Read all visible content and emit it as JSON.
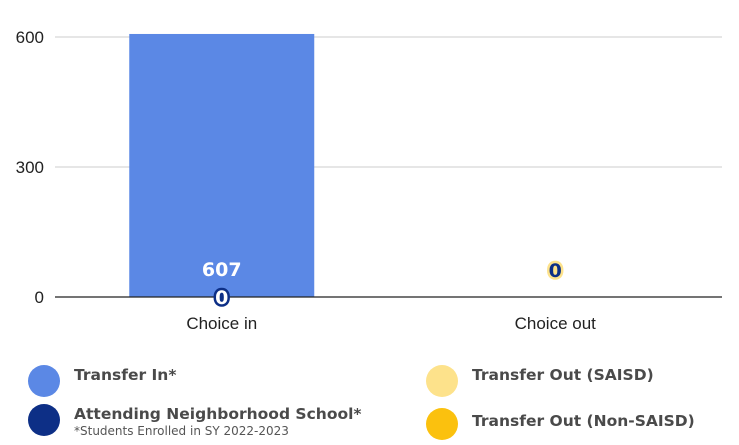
{
  "chart_data": {
    "type": "bar",
    "categories": [
      "Choice in",
      "Choice out"
    ],
    "series": [
      {
        "name": "Transfer In*",
        "values": [
          607,
          0
        ],
        "color": "#5b88e5"
      },
      {
        "name": "Attending Neighborhood School*",
        "values": [
          0,
          null
        ],
        "color": "#0d2f86"
      },
      {
        "name": "Transfer Out (SAISD)",
        "values": [
          null,
          0
        ],
        "color": "#fde28b"
      },
      {
        "name": "Transfer Out (Non-SAISD)",
        "values": [
          null,
          null
        ],
        "color": "#fbc10e"
      }
    ],
    "bar_labels": [
      {
        "category": "Choice in",
        "text": "607",
        "series": "Transfer In*"
      },
      {
        "category": "Choice in",
        "text": "0",
        "series": "Attending Neighborhood School*"
      },
      {
        "category": "Choice out",
        "text": "0",
        "series": "Transfer Out (SAISD)"
      }
    ],
    "yticks": [
      0,
      300,
      600
    ],
    "ylim": [
      0,
      610
    ],
    "grid": true,
    "legend_position": "bottom",
    "xlabel": "",
    "ylabel": ""
  },
  "legend": {
    "items": [
      {
        "label": "Transfer In*",
        "color": "#5b88e5"
      },
      {
        "label": "Transfer Out (SAISD)",
        "color": "#fde28b"
      },
      {
        "label": "Attending Neighborhood School*",
        "color": "#0d2f86",
        "note": "*Students Enrolled in SY 2022-2023"
      },
      {
        "label": "Transfer Out (Non-SAISD)",
        "color": "#fbc10e"
      }
    ]
  }
}
